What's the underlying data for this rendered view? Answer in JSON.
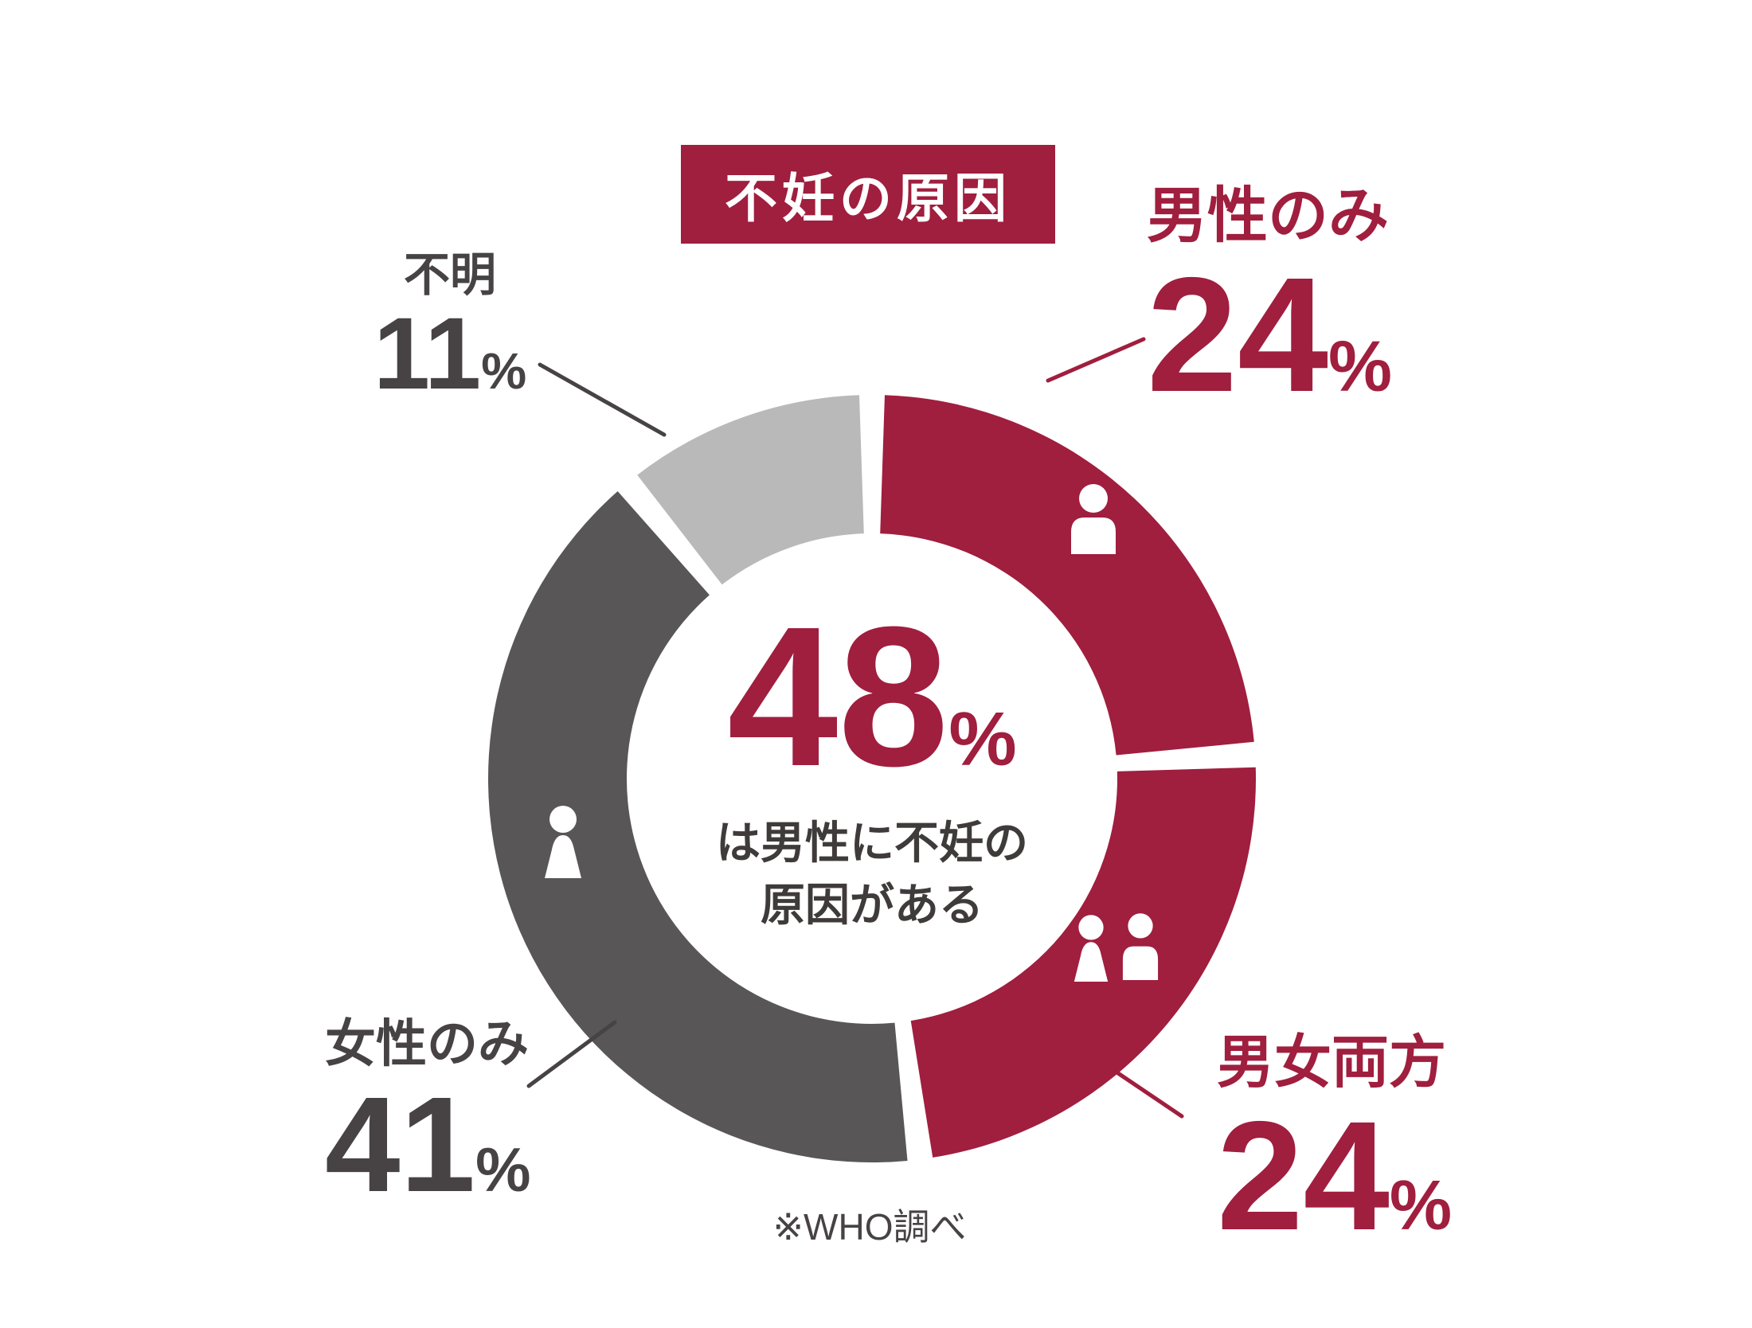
{
  "colors": {
    "crimson": "#a01e3e",
    "dark_gray": "#595657",
    "light_gray": "#b9b9ba",
    "gray_text": "#474344",
    "text_dark": "#3f3b3a",
    "white": "#ffffff"
  },
  "chart_data": {
    "type": "pie",
    "donut": true,
    "title": "不妊の原因",
    "unit": "%",
    "source": "※WHO調べ",
    "start_angle_deg": 0,
    "direction": "clockwise",
    "segments": [
      {
        "label": "男性のみ",
        "value": 24,
        "color": "#a01e3e",
        "icon": "male-icon"
      },
      {
        "label": "男女両方",
        "value": 24,
        "color": "#a01e3e",
        "icon": "couple-icon"
      },
      {
        "label": "女性のみ",
        "value": 41,
        "color": "#595657",
        "icon": "female-icon"
      },
      {
        "label": "不明",
        "value": 11,
        "color": "#b9b9ba",
        "icon": null
      }
    ],
    "center": {
      "value": "48",
      "unit": "%",
      "line1": "は男性に不妊の",
      "line2": "原因がある"
    }
  }
}
